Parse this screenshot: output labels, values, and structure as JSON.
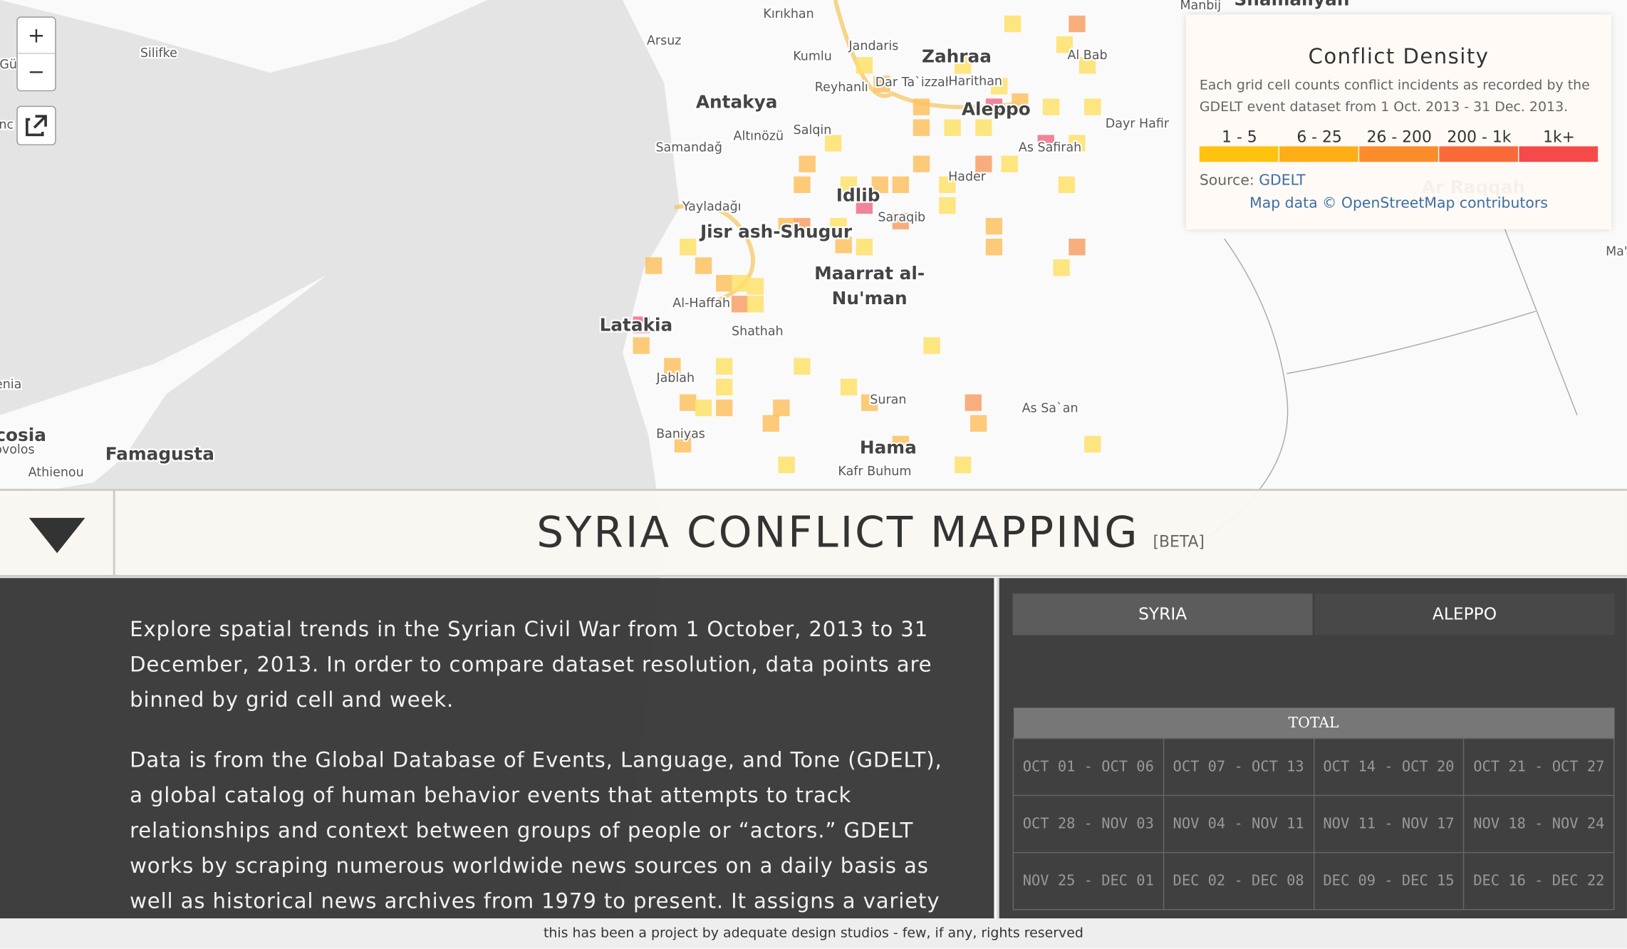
{
  "map": {
    "zoom_in": "+",
    "zoom_out": "−",
    "places": [
      "Silifke",
      "Arsuz",
      "Kırıkhan",
      "Kumlu",
      "Jandaris",
      "Zahraa",
      "Reyhanlı",
      "Dar Ta`izzah",
      "Harithan",
      "Aleppo",
      "Al Bab",
      "Manbij",
      "Shamaliyan",
      "Antakya",
      "Altınözü",
      "Salqin",
      "Dayr Hafir",
      "As Safirah",
      "Samandağ",
      "Hader",
      "Idlib",
      "Yayladağı",
      "Saraqib",
      "Jisr ash-Shugur",
      "Maarrat al-",
      "Nu'man",
      "Al-Haffah",
      "Latakia",
      "Shathah",
      "Jablah",
      "Suran",
      "As Sa`an",
      "Baniyas",
      "Hama",
      "Kafr Buhum",
      "Famagusta",
      "cosia",
      "Athienou",
      "Gü",
      "nc",
      "enia",
      "ovolos",
      "Ar Raqqah",
      "Ma'"
    ]
  },
  "legend": {
    "title": "Conflict Density",
    "description": "Each grid cell counts conflict incidents as recorded by the GDELT event dataset from 1 Oct. 2013 - 31 Dec. 2013.",
    "bins": [
      "1 - 5",
      "6 - 25",
      "26 - 200",
      "200 - 1k",
      "1k+"
    ],
    "source_label": "Source:",
    "source": "GDELT",
    "attribution": "Map data © OpenStreetMap contributors"
  },
  "header": {
    "title": "SYRIA CONFLICT MAPPING",
    "badge": "[BETA]"
  },
  "intro": {
    "paragraphs": [
      "Explore spatial trends in the Syrian Civil War from 1 October, 2013 to 31 December, 2013. In order to compare dataset resolution, data points are binned by grid cell and week.",
      "Data is from the Global Database of Events, Language, and Tone (GDELT), a global catalog of human behavior events that attempts to track relationships and context between groups of people or “actors.” GDELT works by scraping numerous worldwide news sources on a daily basis as well as historical news archives from 1979 to present. It assigns a variety"
    ]
  },
  "tabs": [
    "SYRIA",
    "ALEPPO"
  ],
  "table": {
    "title": "TOTAL",
    "rows": [
      [
        "OCT 01 - OCT 06",
        "OCT 07 - OCT 13",
        "OCT 14 - OCT 20",
        "OCT 21 - OCT 27"
      ],
      [
        "OCT 28 - NOV 03",
        "NOV 04 - NOV 11",
        "NOV 11 - NOV 17",
        "NOV 18 - NOV 24"
      ],
      [
        "NOV 25 - DEC 01",
        "DEC 02 - DEC 08",
        "DEC 09 - DEC 15",
        "DEC 16 - DEC 22"
      ]
    ]
  },
  "footer": "this has been a project by adequate design studios - few, if any, rights reserved"
}
